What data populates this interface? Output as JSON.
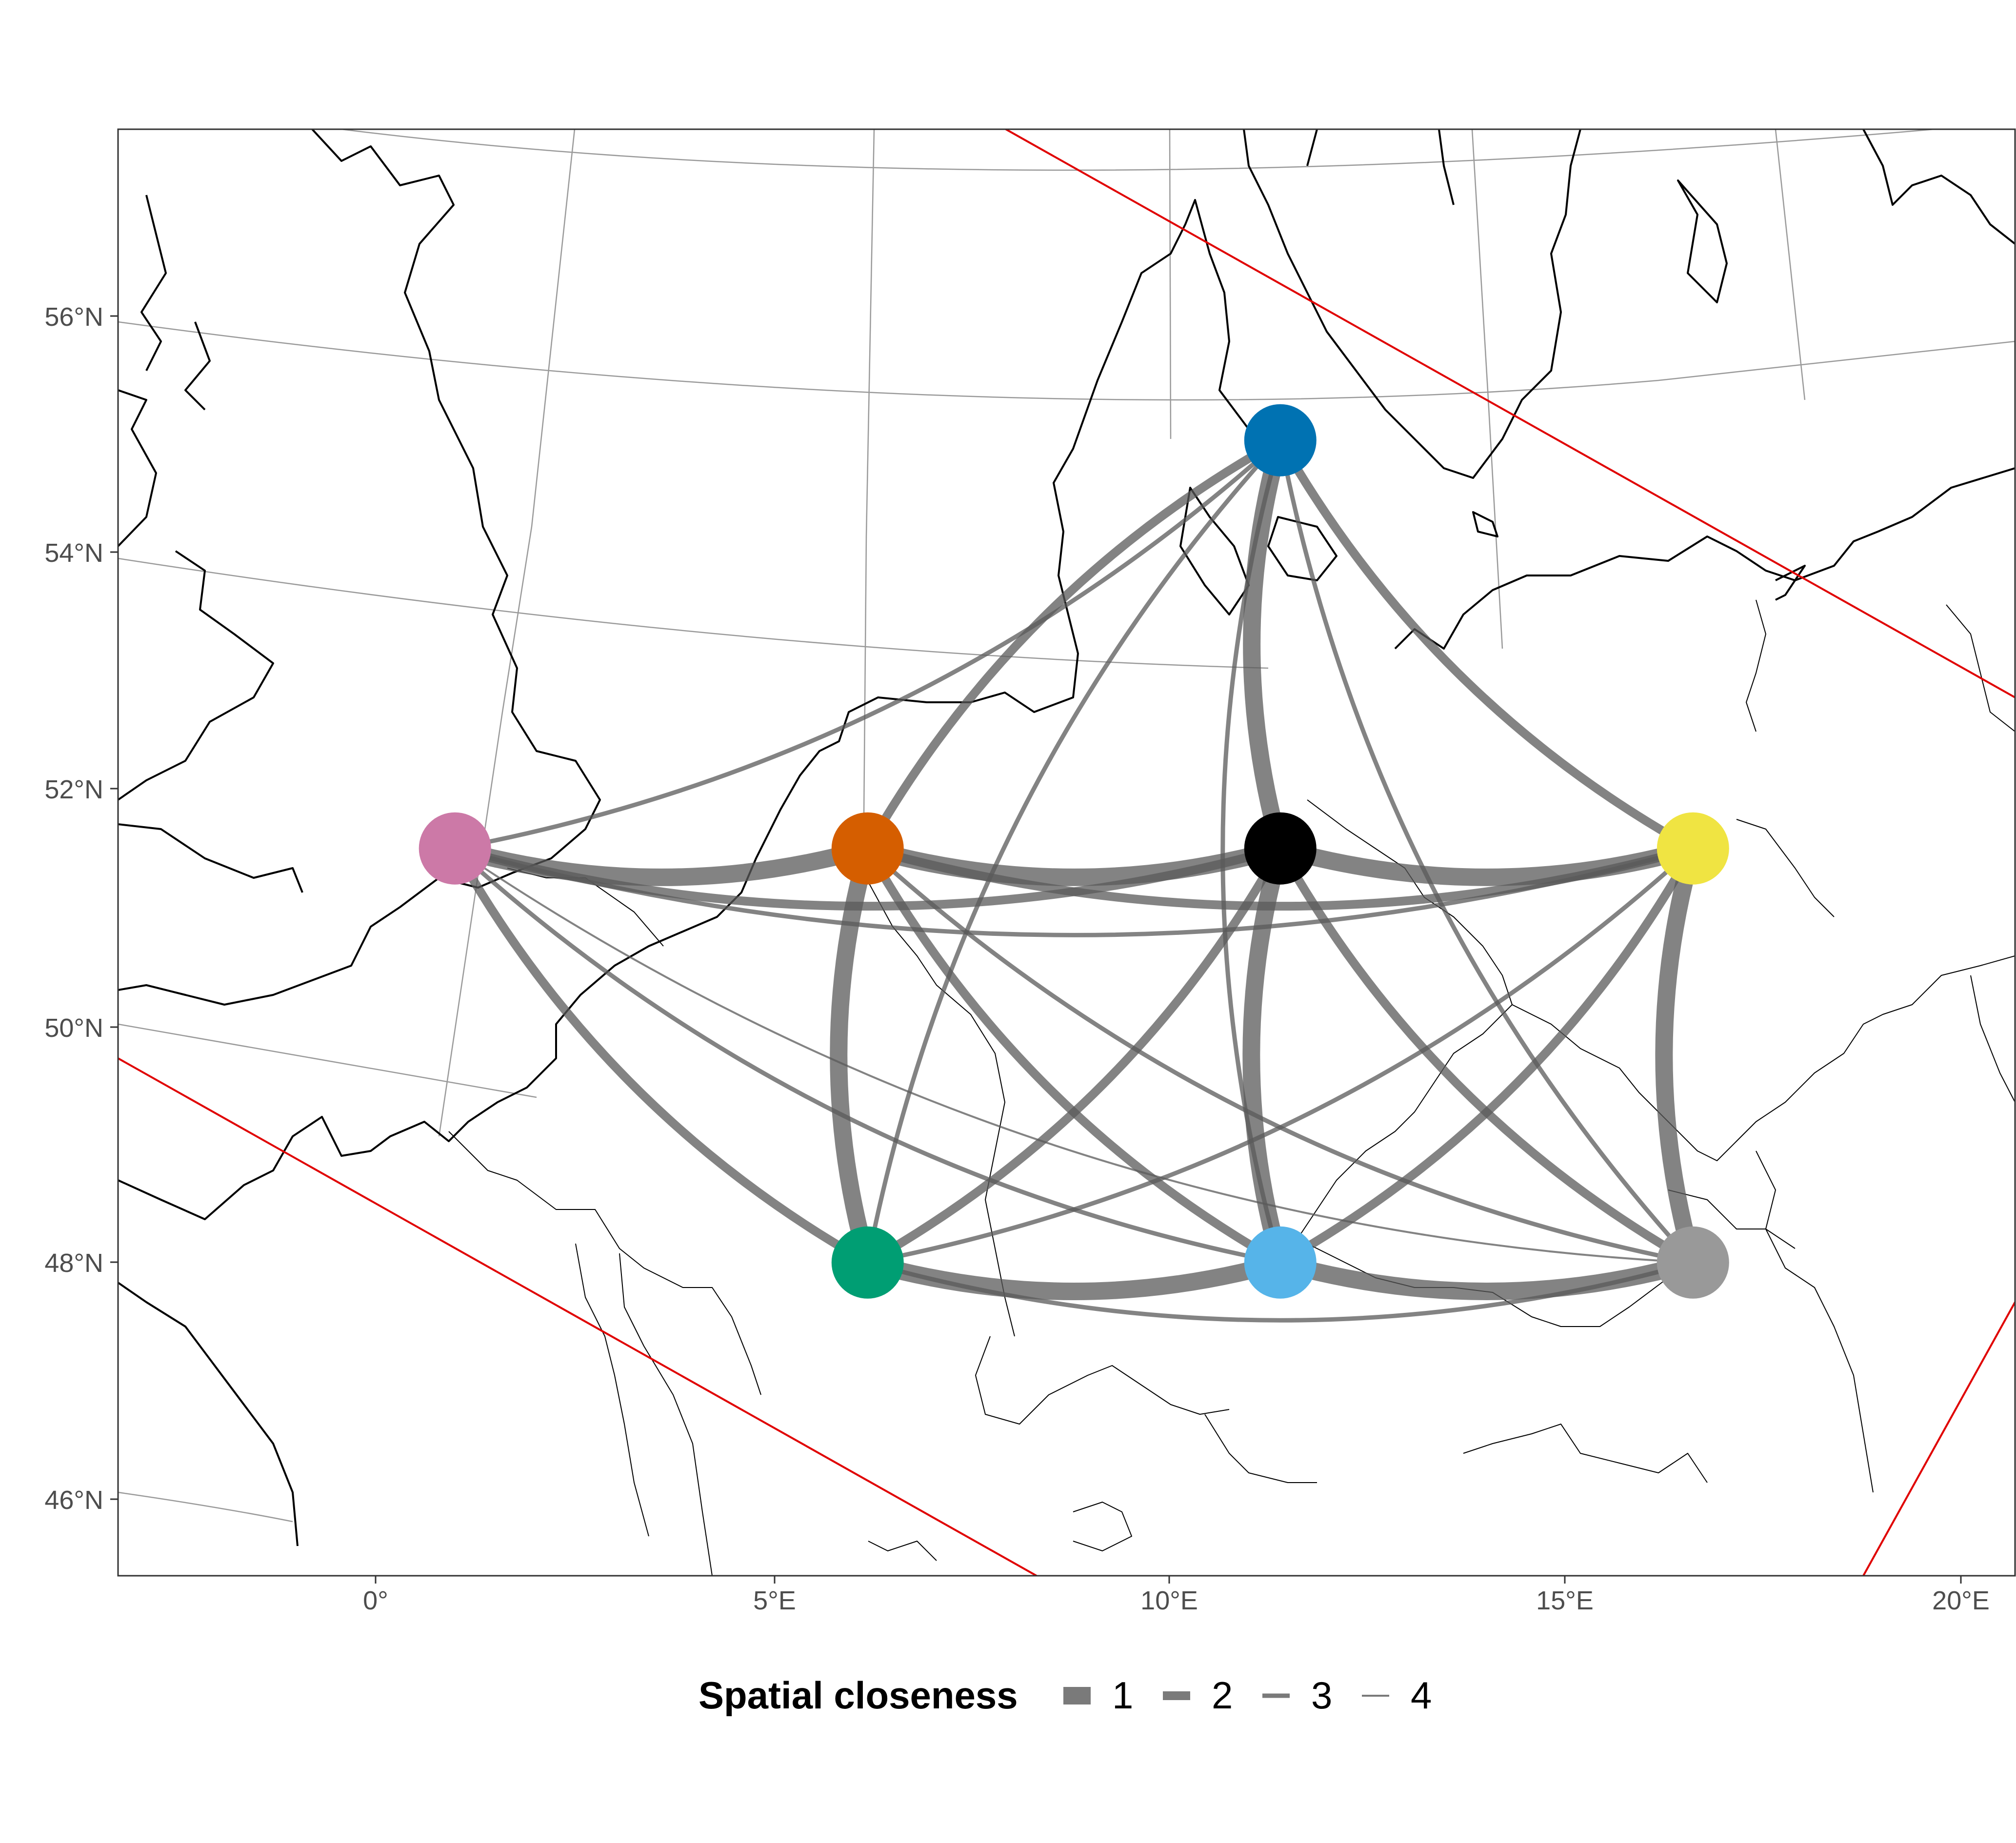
{
  "axes": {
    "x_ticks": [
      "0°",
      "5°E",
      "10°E",
      "15°E",
      "20°E"
    ],
    "y_ticks": [
      "56°N",
      "54°N",
      "52°N",
      "50°N",
      "48°N",
      "46°N"
    ]
  },
  "legend": {
    "title": "Spatial closeness",
    "levels": [
      "1",
      "2",
      "3",
      "4"
    ]
  },
  "colors": {
    "edge": "#5a5a5a",
    "bounding_line": "#e00000",
    "coast": "#000000",
    "graticule": "#9a9a9a"
  },
  "nodes": [
    {
      "name": "pink",
      "color": "#cc79a7",
      "lon": 1.0,
      "lat": 51.5
    },
    {
      "name": "orange",
      "color": "#d55e00",
      "lon": 6.2,
      "lat": 51.5
    },
    {
      "name": "black",
      "color": "#000000",
      "lon": 11.4,
      "lat": 51.5
    },
    {
      "name": "yellow",
      "color": "#f0e442",
      "lon": 16.6,
      "lat": 51.5
    },
    {
      "name": "blue",
      "color": "#0072b2",
      "lon": 11.4,
      "lat": 54.95
    },
    {
      "name": "green",
      "color": "#009e73",
      "lon": 6.2,
      "lat": 48.0
    },
    {
      "name": "light-blue",
      "color": "#56b4e9",
      "lon": 11.4,
      "lat": 48.0
    },
    {
      "name": "gray",
      "color": "#999999",
      "lon": 16.6,
      "lat": 48.0
    }
  ],
  "edges": [
    {
      "from": "pink",
      "to": "orange",
      "level": 1
    },
    {
      "from": "orange",
      "to": "black",
      "level": 1
    },
    {
      "from": "black",
      "to": "yellow",
      "level": 1
    },
    {
      "from": "orange",
      "to": "green",
      "level": 1
    },
    {
      "from": "black",
      "to": "light-blue",
      "level": 1
    },
    {
      "from": "yellow",
      "to": "gray",
      "level": 1
    },
    {
      "from": "green",
      "to": "light-blue",
      "level": 1
    },
    {
      "from": "light-blue",
      "to": "gray",
      "level": 1
    },
    {
      "from": "blue",
      "to": "black",
      "level": 1
    },
    {
      "from": "pink",
      "to": "black",
      "level": 2
    },
    {
      "from": "orange",
      "to": "yellow",
      "level": 2
    },
    {
      "from": "pink",
      "to": "green",
      "level": 2
    },
    {
      "from": "orange",
      "to": "light-blue",
      "level": 2
    },
    {
      "from": "black",
      "to": "gray",
      "level": 2
    },
    {
      "from": "blue",
      "to": "orange",
      "level": 2
    },
    {
      "from": "blue",
      "to": "yellow",
      "level": 2
    },
    {
      "from": "green",
      "to": "black",
      "level": 2
    },
    {
      "from": "light-blue",
      "to": "yellow",
      "level": 2
    },
    {
      "from": "pink",
      "to": "yellow",
      "level": 3
    },
    {
      "from": "pink",
      "to": "blue",
      "level": 3
    },
    {
      "from": "pink",
      "to": "light-blue",
      "level": 3
    },
    {
      "from": "blue",
      "to": "green",
      "level": 3
    },
    {
      "from": "blue",
      "to": "light-blue",
      "level": 3
    },
    {
      "from": "blue",
      "to": "gray",
      "level": 3
    },
    {
      "from": "green",
      "to": "yellow",
      "level": 3
    },
    {
      "from": "orange",
      "to": "gray",
      "level": 3
    },
    {
      "from": "green",
      "to": "gray",
      "level": 3
    },
    {
      "from": "pink",
      "to": "gray",
      "level": 4
    }
  ]
}
